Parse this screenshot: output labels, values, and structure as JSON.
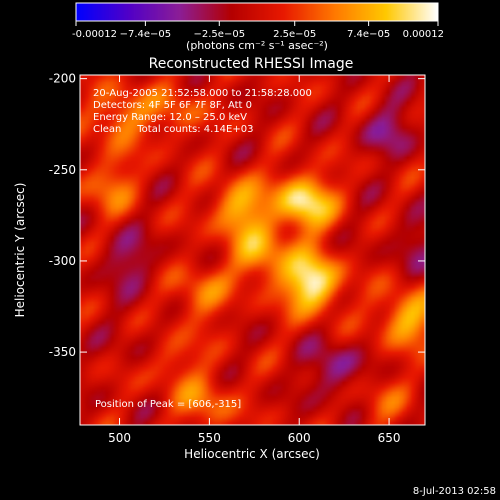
{
  "chart_data": {
    "type": "heatmap",
    "title": "Reconstructed RHESSI Image",
    "xlabel": "Heliocentric X (arcsec)",
    "ylabel": "Heliocentric Y (arcsec)",
    "xlim": [
      478,
      670
    ],
    "ylim": [
      -390,
      -198
    ],
    "x_ticks": [
      500,
      550,
      600,
      650
    ],
    "y_ticks": [
      -200,
      -250,
      -300,
      -350
    ],
    "colorbar": {
      "min": -0.00012,
      "max": 0.00012,
      "tick_labels": [
        "-0.00012",
        "−7.4e−05",
        "−2.5e−05",
        "2.5e−05",
        "7.4e−05",
        "0.00012"
      ],
      "tick_values": [
        -0.00012,
        -7.4e-05,
        -2.5e-05,
        2.5e-05,
        7.4e-05,
        0.00012
      ],
      "unit_label": "(photons cm⁻² s⁻¹ asec⁻²)",
      "colormap": [
        "#0000ff",
        "#5000c8",
        "#8c1e96",
        "#b40000",
        "#e81800",
        "#ff7800",
        "#ffc800",
        "#ffffff"
      ]
    },
    "annotations": [
      "20‑Aug‑2005 21:52:58.000 to 21:58:28.000",
      "Detectors: 4F 5F 6F 7F 8F, Att 0",
      "Energy Range: 12.0 – 25.0 keV",
      "Clean     Total counts: 4.14E+03"
    ],
    "peak_label": "Position of Peak = [606,-315]",
    "peak_position": [
      606,
      -315
    ],
    "sources": [
      {
        "x": 607,
        "y": -312,
        "value": 0.00012
      },
      {
        "x": 603,
        "y": -268,
        "value": 0.00011
      },
      {
        "x": 567,
        "y": -271,
        "value": 8e-05
      },
      {
        "x": 579,
        "y": -297,
        "value": 7e-05
      },
      {
        "x": 660,
        "y": -331,
        "value": 8e-05
      },
      {
        "x": 500,
        "y": -220,
        "value": 6e-05
      },
      {
        "x": 494,
        "y": -258,
        "value": 5e-05
      },
      {
        "x": 545,
        "y": -318,
        "value": 5e-05
      },
      {
        "x": 528,
        "y": -354,
        "value": 4e-05
      },
      {
        "x": 548,
        "y": -378,
        "value": 5e-05
      },
      {
        "x": 532,
        "y": -218,
        "value": 4e-05
      },
      {
        "x": 645,
        "y": -376,
        "value": 3e-05
      },
      {
        "x": 650,
        "y": -228,
        "value": -4e-05
      },
      {
        "x": 513,
        "y": -345,
        "value": -2e-05
      },
      {
        "x": 620,
        "y": -360,
        "value": -5e-05
      },
      {
        "x": 505,
        "y": -300,
        "value": -4e-05
      },
      {
        "x": 665,
        "y": -290,
        "value": -3e-05
      }
    ]
  },
  "footer": {
    "timestamp": "8‑Jul‑2013 02:58"
  }
}
